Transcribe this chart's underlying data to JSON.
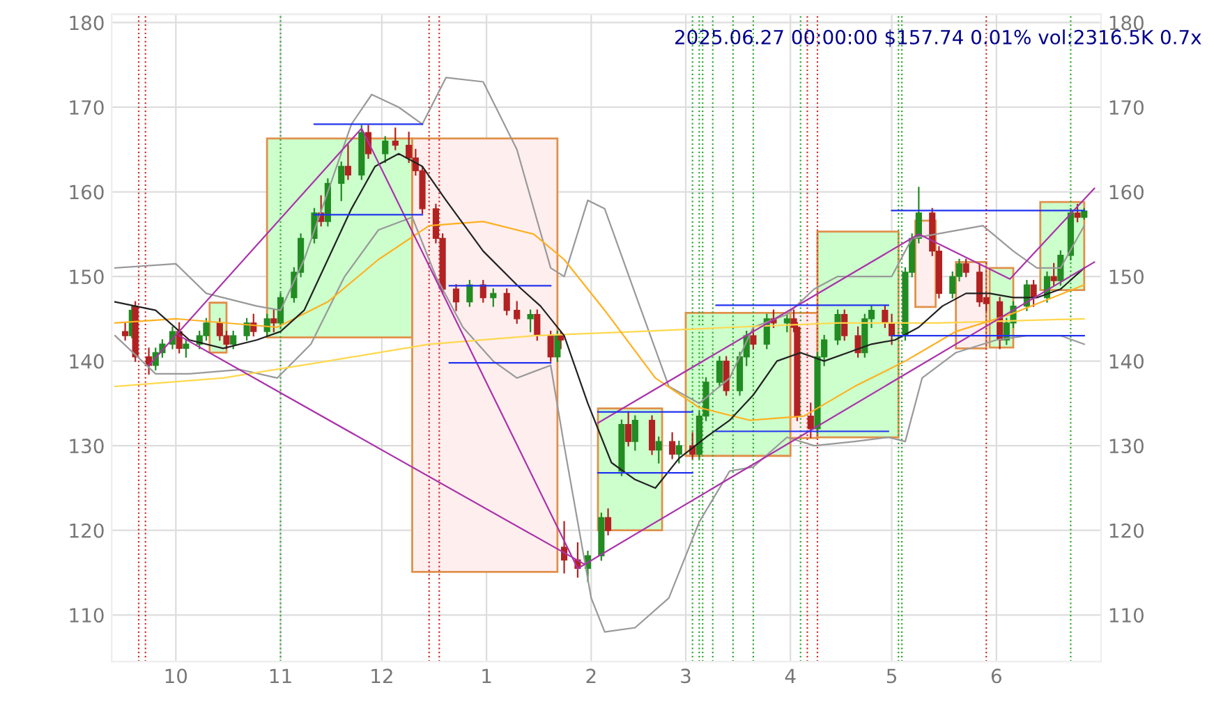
{
  "chart_data": {
    "type": "candlestick",
    "grid": true,
    "line_style": "solid",
    "marker": "none",
    "xlim": [
      "2024-09-12",
      "2025-07-02"
    ],
    "xticks": [
      {
        "value": "2024-10-01",
        "label": "10"
      },
      {
        "value": "2024-11-01",
        "label": "11"
      },
      {
        "value": "2024-12-01",
        "label": "12"
      },
      {
        "value": "2025-01-01",
        "label": "1"
      },
      {
        "value": "2025-02-01",
        "label": "2"
      },
      {
        "value": "2025-03-01",
        "label": "3"
      },
      {
        "value": "2025-04-01",
        "label": "4"
      },
      {
        "value": "2025-05-01",
        "label": "5"
      },
      {
        "value": "2025-06-01",
        "label": "6"
      }
    ],
    "ylim": [
      104.5,
      181
    ],
    "yticks": [
      110,
      120,
      130,
      140,
      150,
      160,
      170,
      180
    ],
    "y2lim": [
      104.5,
      181
    ],
    "y2ticks": [
      110,
      120,
      130,
      140,
      150,
      160,
      170,
      180
    ],
    "annotations": [
      "2025.06.27 00:00:00 $157.74 0.01% vol:2316.5K 0.7x"
    ],
    "ref_lines": [
      {
        "axis": "x",
        "value": "2024-09-20",
        "color": "#cc3333",
        "line_style": "dotted"
      },
      {
        "axis": "x",
        "value": "2024-09-22",
        "color": "#cc3333",
        "line_style": "dotted"
      },
      {
        "axis": "x",
        "value": "2024-11-01",
        "color": "#33aa33",
        "line_style": "dotted"
      },
      {
        "axis": "x",
        "value": "2024-12-15",
        "color": "#cc3333",
        "line_style": "dotted"
      },
      {
        "axis": "x",
        "value": "2024-12-18",
        "color": "#cc3333",
        "line_style": "dotted"
      },
      {
        "axis": "x",
        "value": "2025-03-03",
        "color": "#33aa33",
        "line_style": "dotted"
      },
      {
        "axis": "x",
        "value": "2025-03-05",
        "color": "#33aa33",
        "line_style": "dotted"
      },
      {
        "axis": "x",
        "value": "2025-03-06",
        "color": "#33aa33",
        "line_style": "dotted"
      },
      {
        "axis": "x",
        "value": "2025-03-09",
        "color": "#33aa33",
        "line_style": "dotted"
      },
      {
        "axis": "x",
        "value": "2025-03-15",
        "color": "#33aa33",
        "line_style": "dotted"
      },
      {
        "axis": "x",
        "value": "2025-03-21",
        "color": "#33aa33",
        "line_style": "dotted"
      },
      {
        "axis": "x",
        "value": "2025-04-04",
        "color": "#33aa33",
        "line_style": "dotted"
      },
      {
        "axis": "x",
        "value": "2025-04-06",
        "color": "#cc3333",
        "line_style": "dotted"
      },
      {
        "axis": "x",
        "value": "2025-04-09",
        "color": "#cc3333",
        "line_style": "dotted"
      },
      {
        "axis": "x",
        "value": "2025-05-03",
        "color": "#33aa33",
        "line_style": "dotted"
      },
      {
        "axis": "x",
        "value": "2025-05-04",
        "color": "#33aa33",
        "line_style": "dotted"
      },
      {
        "axis": "x",
        "value": "2025-05-29",
        "color": "#cc3333",
        "line_style": "dotted"
      },
      {
        "axis": "x",
        "value": "2025-06-23",
        "color": "#33aa33",
        "line_style": "dotted"
      }
    ],
    "series": [
      {
        "type": "area",
        "color": "#ccffcc",
        "x": [
          "2024-10-11",
          "2024-10-16",
          "2024-10-16",
          "2024-10-11"
        ],
        "values": [
          146.9,
          146.9,
          141,
          141
        ]
      },
      {
        "type": "area",
        "color": "#ccffcc",
        "x": [
          "2024-10-28",
          "2024-12-10",
          "2024-12-10",
          "2024-10-28"
        ],
        "values": [
          166.3,
          166.3,
          142.8,
          142.8
        ]
      },
      {
        "type": "area",
        "color": "#ffeeee",
        "x": [
          "2024-12-10",
          "2025-01-22",
          "2025-01-22",
          "2024-12-10"
        ],
        "values": [
          166.3,
          166.3,
          115.1,
          115.1
        ]
      },
      {
        "type": "area",
        "color": "#ccffcc",
        "x": [
          "2025-02-03",
          "2025-02-22",
          "2025-02-22",
          "2025-02-03"
        ],
        "values": [
          134.4,
          134.4,
          120,
          120
        ]
      },
      {
        "type": "area",
        "color": "#ccffcc",
        "x": [
          "2025-03-01",
          "2025-04-01",
          "2025-04-01",
          "2025-03-01"
        ],
        "values": [
          145.7,
          145.7,
          128.8,
          128.8
        ]
      },
      {
        "type": "area",
        "color": "#ffeeee",
        "x": [
          "2025-04-01",
          "2025-04-09",
          "2025-04-09",
          "2025-04-01"
        ],
        "values": [
          145.7,
          145.7,
          130.9,
          130.9
        ]
      },
      {
        "type": "area",
        "color": "#ccffcc",
        "x": [
          "2025-04-09",
          "2025-05-03",
          "2025-05-03",
          "2025-04-09"
        ],
        "values": [
          155.3,
          155.3,
          131,
          131
        ]
      },
      {
        "type": "area",
        "color": "#ffeeee",
        "x": [
          "2025-05-08",
          "2025-05-14",
          "2025-05-14",
          "2025-05-08"
        ],
        "values": [
          156.6,
          156.6,
          146.4,
          146.4
        ]
      },
      {
        "type": "area",
        "color": "#ffeeee",
        "x": [
          "2025-05-20",
          "2025-05-29",
          "2025-05-29",
          "2025-05-20"
        ],
        "values": [
          151.7,
          151.7,
          141.5,
          141.5
        ]
      },
      {
        "type": "area",
        "color": "#ccffcc",
        "x": [
          "2025-05-30",
          "2025-06-06",
          "2025-06-06",
          "2025-05-30"
        ],
        "values": [
          151,
          151,
          141.6,
          141.6
        ]
      },
      {
        "type": "area",
        "color": "#ccffcc",
        "x": [
          "2025-06-14",
          "2025-06-27",
          "2025-06-27",
          "2025-06-14"
        ],
        "values": [
          158.8,
          158.8,
          148.4,
          148.4
        ]
      },
      {
        "type": "line",
        "color": "#999999",
        "x": [
          "2024-09-13",
          "2024-10-01",
          "2024-10-10",
          "2024-10-25",
          "2024-11-01",
          "2024-11-08",
          "2024-11-15",
          "2024-11-22",
          "2024-11-28",
          "2024-12-06",
          "2024-12-13",
          "2024-12-20",
          "2024-12-31",
          "2025-01-10",
          "2025-01-20",
          "2025-01-24",
          "2025-01-31",
          "2025-02-05",
          "2025-02-14",
          "2025-02-24",
          "2025-03-05",
          "2025-03-14",
          "2025-03-21",
          "2025-03-31",
          "2025-04-08",
          "2025-04-15",
          "2025-04-25",
          "2025-05-01",
          "2025-05-07",
          "2025-05-14",
          "2025-05-28",
          "2025-06-06",
          "2025-06-13",
          "2025-06-20",
          "2025-06-27"
        ],
        "values": [
          151,
          151.5,
          148,
          146.5,
          146,
          152,
          160,
          168,
          171.5,
          170,
          168,
          173.5,
          173,
          165,
          151,
          150,
          159,
          158,
          148,
          137,
          135,
          138,
          144,
          145.5,
          148.5,
          150,
          150,
          150,
          154.5,
          155,
          156,
          153,
          151,
          151,
          156
        ]
      },
      {
        "type": "line",
        "color": "#999999",
        "x": [
          "2024-09-13",
          "2024-09-25",
          "2024-10-05",
          "2024-10-20",
          "2024-10-31",
          "2024-11-10",
          "2024-11-20",
          "2024-11-30",
          "2024-12-10",
          "2024-12-17",
          "2024-12-25",
          "2025-01-03",
          "2025-01-10",
          "2025-01-20",
          "2025-01-24",
          "2025-02-01",
          "2025-02-05",
          "2025-02-14",
          "2025-02-24",
          "2025-03-05",
          "2025-03-14",
          "2025-03-21",
          "2025-03-31",
          "2025-04-08",
          "2025-04-20",
          "2025-04-30",
          "2025-05-05",
          "2025-05-10",
          "2025-05-20",
          "2025-06-01",
          "2025-06-10",
          "2025-06-20",
          "2025-06-27"
        ],
        "values": [
          143,
          138.5,
          138.5,
          139,
          138,
          142,
          150,
          155.5,
          157,
          150,
          144,
          140,
          138,
          139.5,
          130,
          112,
          108,
          108.5,
          112,
          121,
          127,
          127.5,
          131,
          130,
          130.5,
          131,
          130.5,
          138,
          141,
          142.5,
          143,
          143,
          142
        ]
      },
      {
        "type": "line",
        "color": "#ffd84d",
        "x": [
          "2024-09-13",
          "2024-10-15",
          "2024-11-15",
          "2024-12-15",
          "2025-01-15",
          "2025-02-15",
          "2025-03-15",
          "2025-04-15",
          "2025-05-15",
          "2025-06-27"
        ],
        "values": [
          137,
          138,
          140,
          142,
          143,
          143.5,
          144,
          144.5,
          144.5,
          145
        ]
      },
      {
        "type": "line",
        "color": "#ffb020",
        "x": [
          "2024-09-13",
          "2024-10-01",
          "2024-10-31",
          "2024-11-15",
          "2024-11-30",
          "2024-12-15",
          "2024-12-31",
          "2025-01-15",
          "2025-01-24",
          "2025-02-05",
          "2025-02-20",
          "2025-03-05",
          "2025-03-20",
          "2025-04-05",
          "2025-04-20",
          "2025-05-05",
          "2025-05-20",
          "2025-06-05",
          "2025-06-27"
        ],
        "values": [
          144.5,
          145,
          144,
          147,
          152,
          156,
          156.5,
          155,
          152,
          146,
          138,
          134.5,
          133,
          133.5,
          137,
          140,
          143.5,
          145.5,
          149
        ]
      },
      {
        "type": "line",
        "color": "#222222",
        "x": [
          "2024-09-13",
          "2024-09-25",
          "2024-10-05",
          "2024-10-15",
          "2024-10-25",
          "2024-11-01",
          "2024-11-08",
          "2024-11-15",
          "2024-11-22",
          "2024-11-29",
          "2024-12-06",
          "2024-12-13",
          "2024-12-20",
          "2024-12-31",
          "2025-01-10",
          "2025-01-17",
          "2025-01-24",
          "2025-01-31",
          "2025-02-07",
          "2025-02-14",
          "2025-02-20",
          "2025-02-27",
          "2025-03-07",
          "2025-03-14",
          "2025-03-21",
          "2025-03-28",
          "2025-04-04",
          "2025-04-11",
          "2025-04-18",
          "2025-04-25",
          "2025-05-02",
          "2025-05-09",
          "2025-05-16",
          "2025-05-23",
          "2025-05-30",
          "2025-06-06",
          "2025-06-13",
          "2025-06-20",
          "2025-06-27"
        ],
        "values": [
          147,
          146,
          142.5,
          141.5,
          142.5,
          143.5,
          146,
          152,
          158,
          163,
          164.5,
          163,
          159,
          153,
          149,
          146.5,
          143,
          135,
          128,
          126,
          125,
          128.5,
          131,
          133,
          136,
          140,
          141,
          140,
          141,
          142,
          142.5,
          144,
          146.5,
          148,
          148,
          147.5,
          147.5,
          148.5,
          151
        ]
      },
      {
        "type": "line",
        "color": "#aa33aa",
        "x": [
          "2024-09-23",
          "2024-11-25",
          "2025-01-28"
        ],
        "values": [
          139.5,
          167.5,
          115.5
        ]
      },
      {
        "type": "line",
        "color": "#aa33aa",
        "x": [
          "2024-10-02",
          "2025-01-30"
        ],
        "values": [
          143,
          116
        ]
      },
      {
        "type": "line",
        "color": "#aa33aa",
        "x": [
          "2025-02-03",
          "2025-05-09",
          "2025-06-05",
          "2025-06-30"
        ],
        "values": [
          132.7,
          155,
          149.7,
          160.4
        ]
      },
      {
        "type": "line",
        "color": "#aa33aa",
        "x": [
          "2025-01-28",
          "2025-06-30"
        ],
        "values": [
          115.5,
          151.7
        ]
      },
      {
        "type": "line",
        "color": "#2233ee",
        "x": [
          "2024-11-11",
          "2024-12-13"
        ],
        "values": [
          168,
          168
        ]
      },
      {
        "type": "line",
        "color": "#2233ee",
        "x": [
          "2024-11-11",
          "2024-12-13"
        ],
        "values": [
          157.3,
          157.3
        ]
      },
      {
        "type": "line",
        "color": "#2233ee",
        "x": [
          "2024-12-21",
          "2025-01-20"
        ],
        "values": [
          148.9,
          148.9
        ]
      },
      {
        "type": "line",
        "color": "#2233ee",
        "x": [
          "2024-12-21",
          "2025-01-20"
        ],
        "values": [
          139.8,
          139.8
        ]
      },
      {
        "type": "line",
        "color": "#2233ee",
        "x": [
          "2025-02-03",
          "2025-03-03"
        ],
        "values": [
          134,
          134
        ]
      },
      {
        "type": "line",
        "color": "#2233ee",
        "x": [
          "2025-02-03",
          "2025-03-03"
        ],
        "values": [
          126.8,
          126.8
        ]
      },
      {
        "type": "line",
        "color": "#2233ee",
        "x": [
          "2025-03-10",
          "2025-04-30"
        ],
        "values": [
          146.6,
          146.6
        ]
      },
      {
        "type": "line",
        "color": "#2233ee",
        "x": [
          "2025-03-10",
          "2025-04-30"
        ],
        "values": [
          131.7,
          131.7
        ]
      },
      {
        "type": "line",
        "color": "#2233ee",
        "x": [
          "2025-05-01",
          "2025-06-27"
        ],
        "values": [
          157.8,
          157.8
        ]
      },
      {
        "type": "line",
        "color": "#2233ee",
        "x": [
          "2025-05-01",
          "2025-06-27"
        ],
        "values": [
          143,
          143
        ]
      },
      {
        "x": [
          "2024-09-16",
          "2024-09-18",
          "2024-09-19",
          "2024-09-23",
          "2024-09-25",
          "2024-09-27",
          "2024-09-30",
          "2024-10-02",
          "2024-10-04",
          "2024-10-08",
          "2024-10-10",
          "2024-10-14",
          "2024-10-16",
          "2024-10-18",
          "2024-10-22",
          "2024-10-24",
          "2024-10-28",
          "2024-10-30",
          "2024-11-01",
          "2024-11-05",
          "2024-11-07",
          "2024-11-11",
          "2024-11-13",
          "2024-11-15",
          "2024-11-19",
          "2024-11-21",
          "2024-11-25",
          "2024-11-27",
          "2024-12-02",
          "2024-12-05",
          "2024-12-09",
          "2024-12-11",
          "2024-12-13",
          "2024-12-17",
          "2024-12-19",
          "2024-12-23",
          "2024-12-27",
          "2024-12-31",
          "2025-01-03",
          "2025-01-07",
          "2025-01-10",
          "2025-01-14",
          "2025-01-16",
          "2025-01-20",
          "2025-01-22",
          "2025-01-23",
          "2025-01-24",
          "2025-01-28",
          "2025-01-31",
          "2025-02-04",
          "2025-02-06",
          "2025-02-10",
          "2025-02-12",
          "2025-02-14",
          "2025-02-19",
          "2025-02-21",
          "2025-02-25",
          "2025-02-27",
          "2025-03-03",
          "2025-03-05",
          "2025-03-07",
          "2025-03-11",
          "2025-03-13",
          "2025-03-17",
          "2025-03-19",
          "2025-03-21",
          "2025-03-25",
          "2025-03-27",
          "2025-03-31",
          "2025-04-02",
          "2025-04-03",
          "2025-04-07",
          "2025-04-09",
          "2025-04-11",
          "2025-04-15",
          "2025-04-17",
          "2025-04-21",
          "2025-04-23",
          "2025-04-25",
          "2025-04-29",
          "2025-05-01",
          "2025-05-05",
          "2025-05-07",
          "2025-05-09",
          "2025-05-13",
          "2025-05-15",
          "2025-05-19",
          "2025-05-21",
          "2025-05-23",
          "2025-05-27",
          "2025-05-29",
          "2025-06-02",
          "2025-06-04",
          "2025-06-06",
          "2025-06-10",
          "2025-06-12",
          "2025-06-16",
          "2025-06-18",
          "2025-06-20",
          "2025-06-23",
          "2025-06-25",
          "2025-06-27"
        ],
        "ohlc": [
          [
            143.5,
            144.5,
            142.5,
            143.0
          ],
          [
            143.0,
            146.5,
            142.8,
            146.0
          ],
          [
            146.5,
            147.0,
            140.0,
            140.5
          ],
          [
            140.5,
            141.5,
            138.5,
            139.5
          ],
          [
            139.5,
            141.5,
            139.0,
            141.0
          ],
          [
            141.0,
            142.5,
            140.5,
            142.0
          ],
          [
            142.0,
            144.0,
            141.5,
            143.5
          ],
          [
            143.5,
            144.5,
            141.0,
            141.5
          ],
          [
            141.5,
            142.5,
            140.5,
            142.0
          ],
          [
            142.0,
            143.5,
            141.5,
            143.0
          ],
          [
            143.0,
            145.0,
            142.5,
            144.5
          ],
          [
            144.5,
            145.0,
            142.5,
            143.0
          ],
          [
            143.0,
            143.5,
            141.5,
            142.0
          ],
          [
            142.0,
            143.5,
            141.5,
            143.0
          ],
          [
            143.0,
            145.0,
            142.5,
            144.5
          ],
          [
            144.5,
            145.5,
            143.0,
            143.5
          ],
          [
            143.5,
            145.5,
            143.0,
            145.0
          ],
          [
            145.0,
            146.0,
            143.5,
            144.5
          ],
          [
            144.5,
            148.0,
            144.0,
            147.5
          ],
          [
            147.5,
            151.0,
            147.0,
            150.5
          ],
          [
            150.5,
            155.0,
            150.0,
            154.5
          ],
          [
            154.5,
            158.0,
            154.0,
            157.5
          ],
          [
            157.5,
            159.5,
            156.0,
            156.5
          ],
          [
            156.5,
            161.5,
            156.0,
            161.0
          ],
          [
            161.0,
            163.5,
            159.0,
            163.0
          ],
          [
            163.0,
            165.5,
            161.5,
            162.0
          ],
          [
            162.0,
            167.8,
            161.5,
            167.0
          ],
          [
            167.0,
            167.8,
            164.0,
            164.5
          ],
          [
            164.5,
            166.5,
            163.5,
            166.0
          ],
          [
            166.0,
            167.5,
            165.0,
            165.5
          ],
          [
            165.5,
            167.0,
            163.5,
            164.0
          ],
          [
            164.0,
            165.0,
            162.0,
            162.5
          ],
          [
            162.5,
            163.0,
            157.5,
            158.0
          ],
          [
            158.0,
            158.5,
            154.0,
            154.5
          ],
          [
            154.5,
            155.0,
            148.0,
            148.5
          ],
          [
            148.5,
            149.0,
            146.0,
            147.0
          ],
          [
            147.0,
            149.5,
            146.5,
            149.0
          ],
          [
            149.0,
            149.5,
            147.0,
            147.5
          ],
          [
            147.5,
            148.5,
            146.5,
            148.0
          ],
          [
            148.0,
            148.5,
            145.5,
            146.0
          ],
          [
            146.0,
            147.0,
            144.5,
            145.0
          ],
          [
            145.0,
            146.0,
            143.5,
            145.5
          ],
          [
            145.5,
            146.0,
            142.5,
            143.0
          ],
          [
            143.0,
            143.5,
            140.0,
            140.5
          ],
          [
            140.5,
            143.5,
            140.0,
            143.0
          ],
          [
            143.0,
            143.5,
            141.5,
            142.5
          ],
          [
            118.0,
            121.0,
            115.0,
            116.5
          ],
          [
            116.5,
            118.5,
            114.5,
            115.5
          ],
          [
            115.5,
            117.5,
            114.0,
            117.0
          ],
          [
            117.0,
            122.0,
            116.5,
            121.5
          ],
          [
            121.5,
            122.5,
            119.5,
            120.0
          ],
          [
            127.0,
            133.0,
            126.5,
            132.5
          ],
          [
            132.5,
            134.0,
            130.0,
            130.5
          ],
          [
            130.5,
            133.5,
            129.5,
            133.0
          ],
          [
            133.0,
            133.5,
            129.0,
            129.5
          ],
          [
            129.5,
            131.0,
            128.0,
            130.5
          ],
          [
            130.5,
            131.5,
            128.5,
            129.0
          ],
          [
            129.0,
            130.5,
            128.0,
            130.0
          ],
          [
            130.0,
            131.5,
            128.5,
            129.0
          ],
          [
            129.0,
            134.0,
            128.5,
            133.5
          ],
          [
            133.5,
            138.0,
            133.0,
            137.5
          ],
          [
            137.5,
            140.5,
            137.0,
            140.0
          ],
          [
            140.0,
            140.5,
            136.0,
            136.5
          ],
          [
            136.5,
            141.0,
            136.0,
            140.5
          ],
          [
            140.5,
            143.5,
            139.5,
            143.0
          ],
          [
            143.0,
            144.0,
            141.5,
            142.0
          ],
          [
            142.0,
            145.5,
            141.5,
            145.0
          ],
          [
            145.0,
            146.0,
            144.0,
            144.5
          ],
          [
            144.5,
            145.5,
            143.5,
            145.0
          ],
          [
            145.0,
            146.0,
            143.5,
            144.0
          ],
          [
            144.0,
            144.5,
            133.0,
            133.5
          ],
          [
            133.5,
            135.0,
            131.0,
            132.0
          ],
          [
            132.0,
            141.0,
            131.5,
            140.5
          ],
          [
            140.5,
            143.0,
            139.5,
            142.5
          ],
          [
            142.5,
            146.0,
            142.0,
            145.5
          ],
          [
            145.5,
            146.0,
            142.5,
            143.0
          ],
          [
            143.0,
            144.0,
            140.5,
            141.0
          ],
          [
            141.0,
            145.5,
            140.5,
            145.0
          ],
          [
            145.0,
            146.5,
            144.0,
            146.0
          ],
          [
            146.0,
            146.5,
            144.0,
            144.5
          ],
          [
            144.5,
            145.5,
            142.0,
            143.0
          ],
          [
            143.0,
            151.0,
            142.5,
            150.5
          ],
          [
            150.5,
            155.0,
            150.0,
            154.5
          ],
          [
            154.5,
            160.5,
            154.0,
            157.5
          ],
          [
            157.5,
            158.0,
            152.5,
            153.0
          ],
          [
            153.0,
            153.5,
            147.5,
            148.0
          ],
          [
            148.0,
            150.5,
            147.5,
            150.0
          ],
          [
            150.0,
            152.0,
            149.5,
            151.5
          ],
          [
            151.5,
            152.0,
            150.0,
            150.5
          ],
          [
            150.5,
            151.5,
            146.5,
            147.0
          ],
          [
            147.5,
            147.8,
            146.0,
            146.8
          ],
          [
            147.0,
            147.5,
            141.5,
            142.5
          ],
          [
            142.5,
            145.0,
            142.0,
            144.5
          ],
          [
            144.5,
            147.0,
            144.0,
            146.5
          ],
          [
            146.5,
            149.5,
            146.0,
            149.0
          ],
          [
            149.0,
            149.5,
            146.5,
            147.5
          ],
          [
            147.5,
            150.5,
            147.0,
            150.0
          ],
          [
            150.0,
            151.5,
            149.0,
            149.5
          ],
          [
            149.5,
            153.0,
            149.0,
            152.5
          ],
          [
            152.5,
            158.0,
            152.0,
            157.5
          ],
          [
            157.5,
            158.5,
            156.5,
            157.0
          ],
          [
            157.0,
            158.0,
            156.8,
            157.74
          ]
        ],
        "colors": [
          "#b22222",
          "#228b22",
          "#b22222",
          "#b22222",
          "#228b22",
          "#228b22",
          "#228b22",
          "#b22222",
          "#228b22",
          "#228b22",
          "#228b22",
          "#b22222",
          "#b22222",
          "#228b22",
          "#228b22",
          "#b22222",
          "#228b22",
          "#b22222",
          "#228b22",
          "#228b22",
          "#228b22",
          "#228b22",
          "#b22222",
          "#228b22",
          "#228b22",
          "#b22222",
          "#228b22",
          "#b22222",
          "#228b22",
          "#b22222",
          "#b22222",
          "#b22222",
          "#b22222",
          "#b22222",
          "#b22222",
          "#b22222",
          "#228b22",
          "#b22222",
          "#228b22",
          "#b22222",
          "#b22222",
          "#228b22",
          "#b22222",
          "#b22222",
          "#228b22",
          "#b22222",
          "#b22222",
          "#b22222",
          "#228b22",
          "#228b22",
          "#b22222",
          "#228b22",
          "#b22222",
          "#228b22",
          "#b22222",
          "#228b22",
          "#b22222",
          "#228b22",
          "#b22222",
          "#228b22",
          "#228b22",
          "#228b22",
          "#b22222",
          "#228b22",
          "#228b22",
          "#b22222",
          "#228b22",
          "#b22222",
          "#228b22",
          "#b22222",
          "#b22222",
          "#b22222",
          "#228b22",
          "#228b22",
          "#228b22",
          "#b22222",
          "#b22222",
          "#228b22",
          "#228b22",
          "#b22222",
          "#b22222",
          "#228b22",
          "#228b22",
          "#228b22",
          "#b22222",
          "#b22222",
          "#228b22",
          "#228b22",
          "#b22222",
          "#b22222",
          "#b22222",
          "#b22222",
          "#228b22",
          "#228b22",
          "#228b22",
          "#b22222",
          "#228b22",
          "#b22222",
          "#228b22",
          "#228b22",
          "#b22222",
          "#228b22"
        ]
      }
    ]
  }
}
